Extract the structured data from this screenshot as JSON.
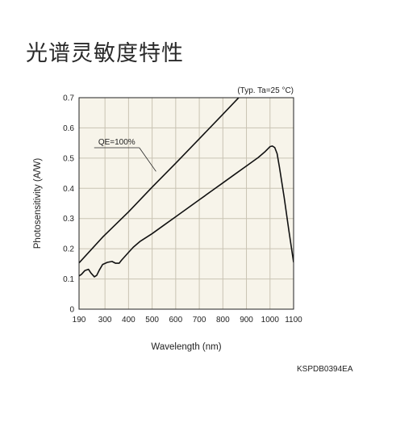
{
  "page": {
    "title": "光谱灵敏度特性",
    "chart_code": "KSPDB0394EA"
  },
  "chart_data": {
    "type": "line",
    "title": "",
    "annotation_top_right": "(Typ. Ta=25 °C)",
    "xlabel": "Wavelength (nm)",
    "ylabel": "Photosensitivity (A/W)",
    "xlim": [
      190,
      1100
    ],
    "ylim": [
      0,
      0.7
    ],
    "x_ticks": [
      190,
      300,
      400,
      500,
      600,
      700,
      800,
      900,
      1000,
      1100
    ],
    "y_ticks": [
      0,
      0.1,
      0.2,
      0.3,
      0.4,
      0.5,
      0.6,
      0.7
    ],
    "y_tick_labels": [
      "0",
      "0.1",
      "0.2",
      "0.3",
      "0.4",
      "0.5",
      "0.6",
      "0.7"
    ],
    "grid": true,
    "colors": {
      "line": "#111111",
      "grid": "#c9c3b3",
      "plot_bg": "#f7f4ea"
    },
    "series": [
      {
        "name": "QE=100%",
        "x": [
          190,
          292,
          400,
          500,
          600,
          700,
          800,
          900
        ],
        "y": [
          0.153,
          0.24,
          0.322,
          0.404,
          0.483,
          0.564,
          0.645,
          0.727
        ]
      },
      {
        "name": "",
        "x": [
          190,
          200,
          215,
          230,
          240,
          255,
          265,
          275,
          290,
          310,
          330,
          345,
          360,
          370,
          385,
          400,
          420,
          450,
          500,
          550,
          600,
          650,
          700,
          750,
          800,
          850,
          900,
          950,
          980,
          1000,
          1010,
          1020,
          1030,
          1040,
          1060,
          1080,
          1100
        ],
        "y": [
          0.11,
          0.115,
          0.128,
          0.132,
          0.12,
          0.107,
          0.112,
          0.128,
          0.148,
          0.155,
          0.158,
          0.152,
          0.152,
          0.162,
          0.175,
          0.188,
          0.205,
          0.225,
          0.25,
          0.278,
          0.306,
          0.334,
          0.362,
          0.39,
          0.418,
          0.446,
          0.474,
          0.502,
          0.522,
          0.538,
          0.54,
          0.535,
          0.515,
          0.47,
          0.37,
          0.26,
          0.155
        ]
      }
    ],
    "annotations": [
      {
        "text": "QE=100%",
        "x": 350,
        "y": 0.545,
        "arrow_to": [
          530,
          0.44
        ]
      }
    ]
  }
}
